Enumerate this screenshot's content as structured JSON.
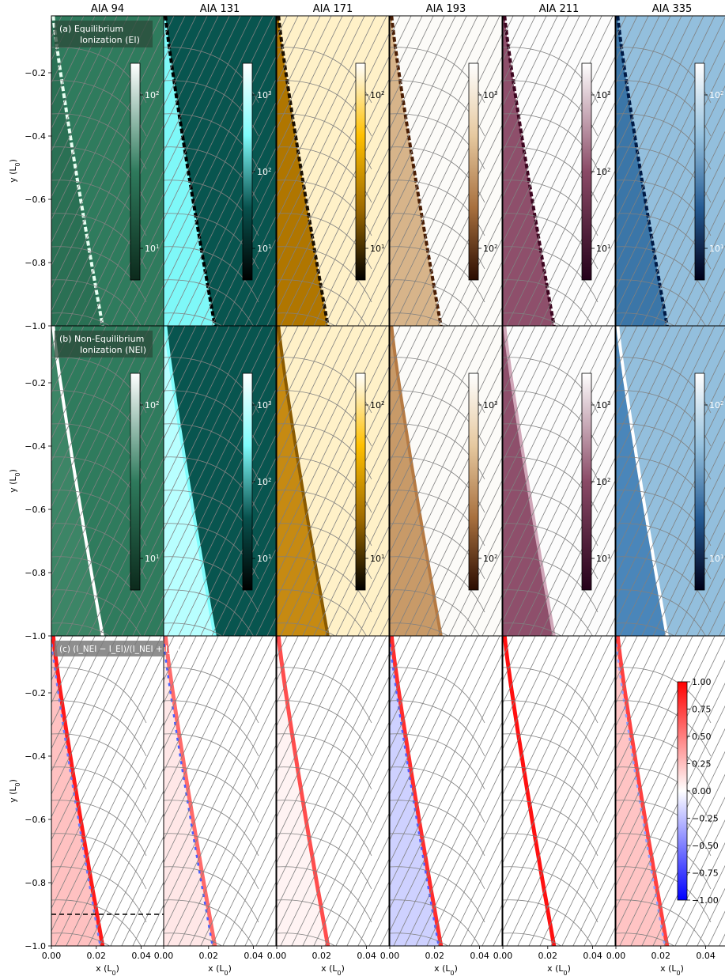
{
  "figure": {
    "rows": [
      {
        "id": "a",
        "label_lines": [
          "(a) Equilibrium",
          "Ionization (EI)"
        ]
      },
      {
        "id": "b",
        "label_lines": [
          "(b) Non-Equilibrium",
          "Ionization (NEI)"
        ]
      },
      {
        "id": "c",
        "label_lines": [
          "(c) $(I_{NEI}-I_{EI})/(I_{NEI}+I_{EI})$"
        ]
      }
    ],
    "row_c_label": "(c) (I_NEI − I_EI)/(I_NEI + I_EI)",
    "columns": [
      "AIA 94",
      "AIA 131",
      "AIA 171",
      "AIA 193",
      "AIA 211",
      "AIA 335"
    ],
    "ylabel": "y (L0)",
    "xlabel": "x (L0)",
    "colors": {
      "aia94": [
        "#0c2a1c",
        "#2e7a5c",
        "#ffffff"
      ],
      "aia131": [
        "#000000",
        "#08514d",
        "#7ffcfc",
        "#ffffff"
      ],
      "aia171": [
        "#000000",
        "#a06c00",
        "#ffc000",
        "#ffffff"
      ],
      "aia193": [
        "#2b0c00",
        "#a8703e",
        "#e6c9a0",
        "#ffffff"
      ],
      "aia211": [
        "#25001a",
        "#8a4a66",
        "#ffffff"
      ],
      "aia335": [
        "#000018",
        "#255b93",
        "#96c2df",
        "#ffffff"
      ],
      "diverging": [
        "#0000ff",
        "#ffffff",
        "#ff0000"
      ],
      "fieldlines": "#808080"
    }
  },
  "chart_data": {
    "type": "heatmap",
    "panels": "3 rows x 6 AIA channels",
    "x_range": [
      0.0,
      0.05
    ],
    "y_range": [
      -1.0,
      -0.02
    ],
    "xticks": [
      "0.00",
      "0.02",
      "0.04"
    ],
    "yticks": [
      "−1.0",
      "−0.8",
      "−0.6",
      "−0.4",
      "−0.2"
    ],
    "cutoff_line_y": -0.9,
    "colorbars_rows_ab": [
      [
        "10^1",
        "10^2"
      ],
      [
        "10^1",
        "10^2",
        "10^3"
      ],
      [
        "10^1",
        "10^2"
      ],
      [
        "10^2",
        "10^3"
      ],
      [
        "10^1",
        "10^2",
        "10^3"
      ],
      [
        "10^1",
        "10^2"
      ]
    ],
    "diverging_colorbar": {
      "range": [
        -1.0,
        1.0
      ],
      "ticks": [
        "1.00",
        "0.75",
        "0.50",
        "0.25",
        "0.00",
        "−0.25",
        "−0.50",
        "−0.75",
        "−1.00"
      ]
    }
  }
}
